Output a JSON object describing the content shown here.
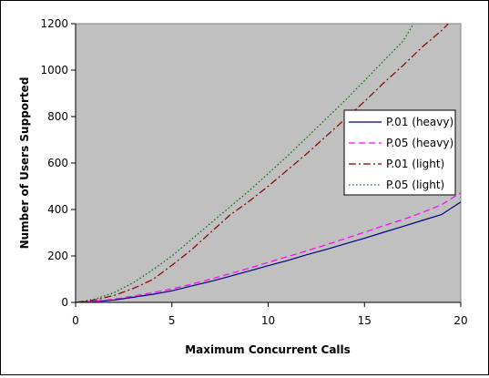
{
  "chart_data": {
    "type": "line",
    "title": "",
    "xlabel": "Maximum Concurrent Calls",
    "ylabel": "Number of Users Supported",
    "xlim": [
      0,
      20
    ],
    "ylim": [
      0,
      1200
    ],
    "xticks": [
      0,
      5,
      10,
      15,
      20
    ],
    "yticks": [
      0,
      200,
      400,
      600,
      800,
      1000,
      1200
    ],
    "grid": false,
    "plot_background": "#c0c0c0",
    "legend_position": "right",
    "series": [
      {
        "name": "P.01 (heavy)",
        "color": "#000080",
        "dash": "solid",
        "x": [
          0,
          1,
          2,
          3,
          4,
          5,
          6,
          7,
          8,
          9,
          10,
          11,
          12,
          13,
          14,
          15,
          16,
          17,
          18,
          19,
          20
        ],
        "y": [
          0,
          3,
          10,
          22,
          35,
          50,
          70,
          90,
          112,
          135,
          158,
          180,
          205,
          228,
          252,
          276,
          302,
          327,
          353,
          378,
          432
        ]
      },
      {
        "name": "P.05 (heavy)",
        "color": "#ff00ff",
        "dash": "dashed",
        "x": [
          0,
          1,
          2,
          3,
          4,
          5,
          6,
          7,
          8,
          9,
          10,
          11,
          12,
          13,
          14,
          15,
          16,
          17,
          18,
          19,
          20
        ],
        "y": [
          0,
          5,
          14,
          27,
          42,
          58,
          78,
          100,
          123,
          147,
          172,
          197,
          222,
          248,
          275,
          302,
          330,
          357,
          387,
          420,
          472
        ]
      },
      {
        "name": "P.01 (light)",
        "color": "#800000",
        "dash": "dashdot",
        "x": [
          0,
          1,
          2,
          3,
          4,
          5,
          6,
          7,
          8,
          9,
          10,
          11,
          12,
          13,
          14,
          15,
          16,
          17,
          18,
          19,
          19.35
        ],
        "y": [
          0,
          10,
          30,
          60,
          98,
          160,
          225,
          300,
          375,
          435,
          500,
          570,
          640,
          715,
          790,
          865,
          945,
          1020,
          1100,
          1170,
          1200
        ]
      },
      {
        "name": "P.05 (light)",
        "color": "#006400",
        "dash": "dotted",
        "x": [
          0,
          1,
          2,
          3,
          4,
          5,
          6,
          7,
          8,
          9,
          10,
          11,
          12,
          13,
          14,
          15,
          16,
          17,
          17.55
        ],
        "y": [
          0,
          14,
          42,
          85,
          140,
          200,
          270,
          340,
          410,
          480,
          555,
          630,
          710,
          790,
          870,
          955,
          1040,
          1125,
          1200
        ]
      }
    ]
  }
}
